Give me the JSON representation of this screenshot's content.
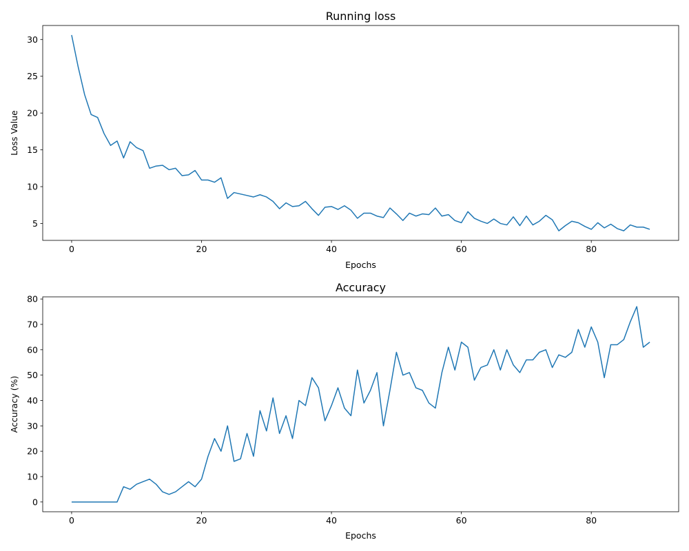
{
  "chart_data": [
    {
      "type": "line",
      "title": "Running loss",
      "xlabel": "Epochs",
      "ylabel": "Loss Value",
      "xlim": [
        -4.45,
        93.45
      ],
      "ylim": [
        2.7,
        31.9
      ],
      "xticks": [
        0,
        20,
        40,
        60,
        80
      ],
      "yticks": [
        5,
        10,
        15,
        20,
        25,
        30
      ],
      "grid": false,
      "color": "#1f77b4",
      "x": [
        0,
        1,
        2,
        3,
        4,
        5,
        6,
        7,
        8,
        9,
        10,
        11,
        12,
        13,
        14,
        15,
        16,
        17,
        18,
        19,
        20,
        21,
        22,
        23,
        24,
        25,
        26,
        27,
        28,
        29,
        30,
        31,
        32,
        33,
        34,
        35,
        36,
        37,
        38,
        39,
        40,
        41,
        42,
        43,
        44,
        45,
        46,
        47,
        48,
        49,
        50,
        51,
        52,
        53,
        54,
        55,
        56,
        57,
        58,
        59,
        60,
        61,
        62,
        63,
        64,
        65,
        66,
        67,
        68,
        69,
        70,
        71,
        72,
        73,
        74,
        75,
        76,
        77,
        78,
        79,
        80,
        81,
        82,
        83,
        84,
        85,
        86,
        87,
        88,
        89
      ],
      "values": [
        30.6,
        26.3,
        22.5,
        19.8,
        19.4,
        17.2,
        15.6,
        16.2,
        13.9,
        16.1,
        15.3,
        14.9,
        12.5,
        12.8,
        12.9,
        12.3,
        12.5,
        11.5,
        11.6,
        12.2,
        10.9,
        10.9,
        10.6,
        11.2,
        8.4,
        9.2,
        9.0,
        8.8,
        8.6,
        8.9,
        8.6,
        8.0,
        7.0,
        7.8,
        7.3,
        7.4,
        8.0,
        7.0,
        6.1,
        7.2,
        7.3,
        6.9,
        7.4,
        6.8,
        5.7,
        6.4,
        6.4,
        6.0,
        5.8,
        7.1,
        6.3,
        5.4,
        6.4,
        6.0,
        6.3,
        6.2,
        7.1,
        6.0,
        6.2,
        5.4,
        5.1,
        6.6,
        5.7,
        5.3,
        5.0,
        5.6,
        5.0,
        4.8,
        5.9,
        4.7,
        6.0,
        4.8,
        5.3,
        6.1,
        5.5,
        4.0,
        4.7,
        5.3,
        5.1,
        4.6,
        4.2,
        5.1,
        4.4,
        4.9,
        4.3,
        4.0,
        4.8,
        4.5,
        4.5,
        4.2
      ]
    },
    {
      "type": "line",
      "title": "Accuracy",
      "xlabel": "Epochs",
      "ylabel": "Accuracy (%)",
      "xlim": [
        -4.45,
        93.45
      ],
      "ylim": [
        -3.85,
        80.85
      ],
      "xticks": [
        0,
        20,
        40,
        60,
        80
      ],
      "yticks": [
        0,
        10,
        20,
        30,
        40,
        50,
        60,
        70,
        80
      ],
      "grid": false,
      "color": "#1f77b4",
      "x": [
        0,
        1,
        2,
        3,
        4,
        5,
        6,
        7,
        8,
        9,
        10,
        11,
        12,
        13,
        14,
        15,
        16,
        17,
        18,
        19,
        20,
        21,
        22,
        23,
        24,
        25,
        26,
        27,
        28,
        29,
        30,
        31,
        32,
        33,
        34,
        35,
        36,
        37,
        38,
        39,
        40,
        41,
        42,
        43,
        44,
        45,
        46,
        47,
        48,
        49,
        50,
        51,
        52,
        53,
        54,
        55,
        56,
        57,
        58,
        59,
        60,
        61,
        62,
        63,
        64,
        65,
        66,
        67,
        68,
        69,
        70,
        71,
        72,
        73,
        74,
        75,
        76,
        77,
        78,
        79,
        80,
        81,
        82,
        83,
        84,
        85,
        86,
        87,
        88,
        89
      ],
      "values": [
        0,
        0,
        0,
        0,
        0,
        0,
        0,
        0,
        6,
        5,
        7,
        8,
        9,
        7,
        4,
        3,
        4,
        6,
        8,
        6,
        9,
        18,
        25,
        20,
        30,
        16,
        17,
        27,
        18,
        36,
        28,
        41,
        27,
        34,
        25,
        40,
        38,
        49,
        45,
        32,
        38,
        45,
        37,
        34,
        52,
        39,
        44,
        51,
        30,
        44,
        59,
        50,
        51,
        45,
        44,
        39,
        37,
        51,
        61,
        52,
        63,
        61,
        48,
        53,
        54,
        60,
        52,
        60,
        54,
        51,
        56,
        56,
        59,
        60,
        53,
        58,
        57,
        59,
        68,
        61,
        69,
        63,
        49,
        62,
        62,
        64,
        71,
        77,
        61,
        63
      ]
    }
  ]
}
